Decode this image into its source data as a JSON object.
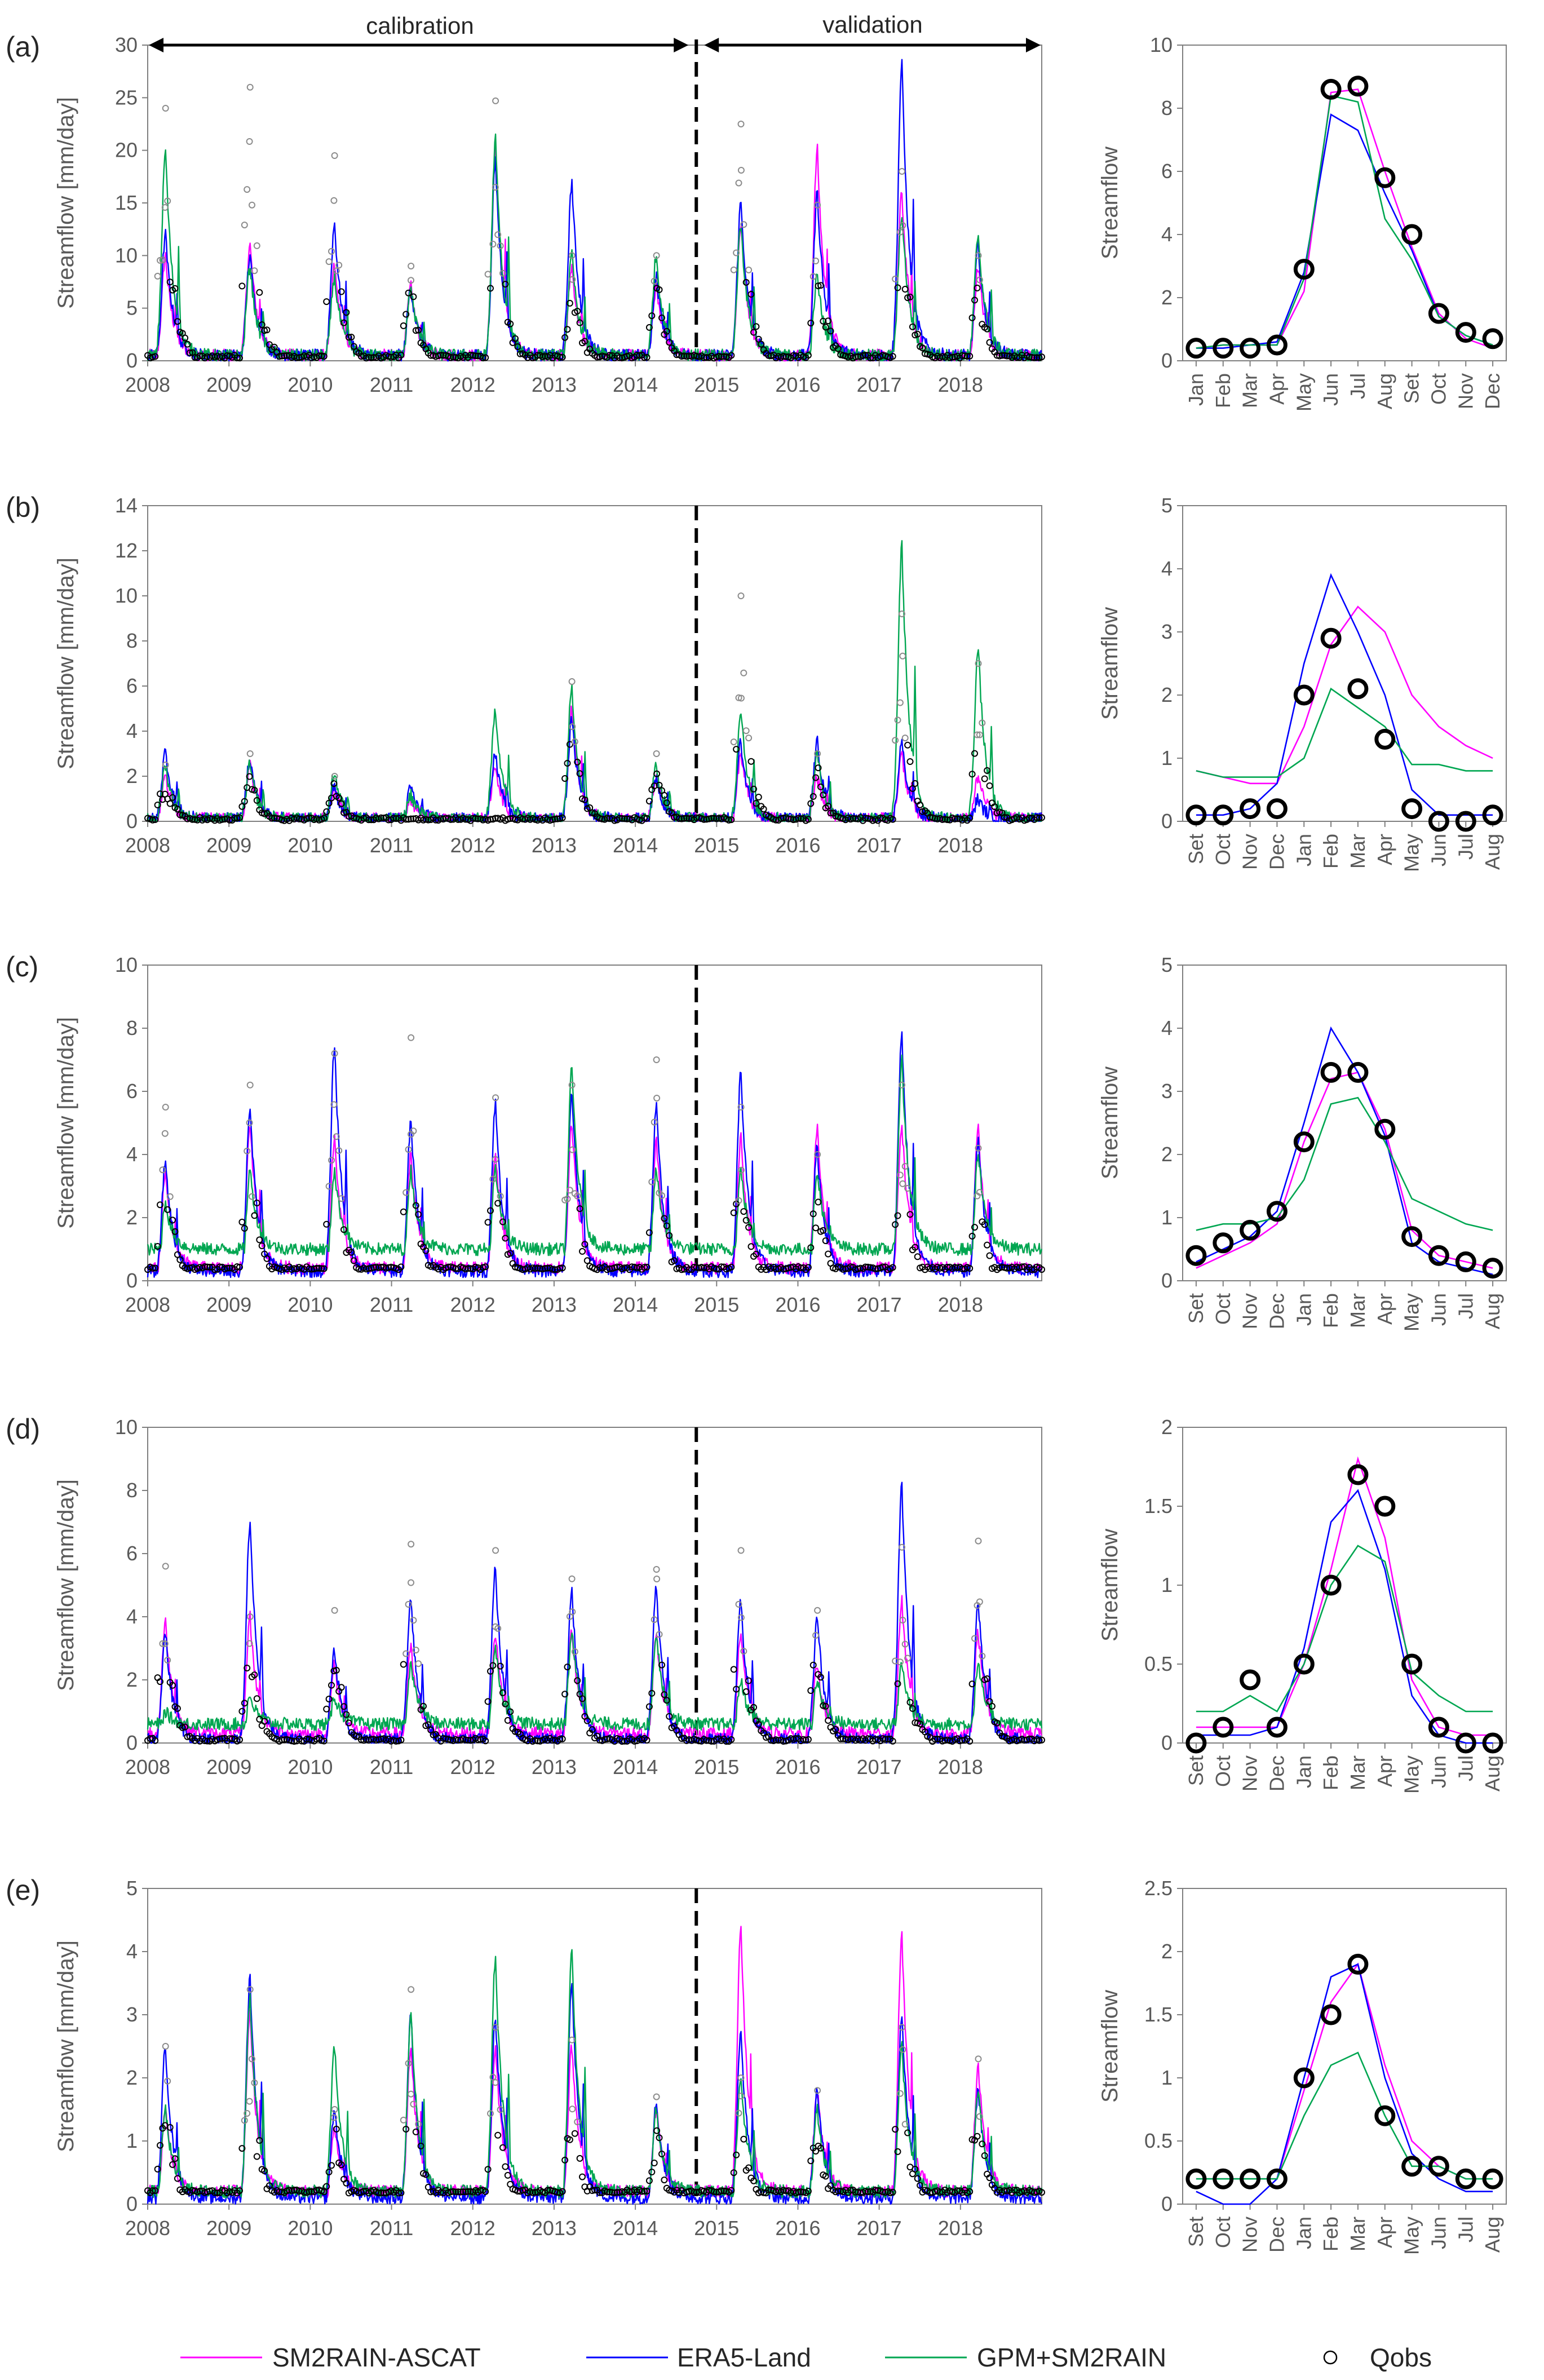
{
  "figure": {
    "calibration_label": "calibration",
    "validation_label": "validation"
  },
  "colors": {
    "SM2RAIN-ASCAT": "#ff00ff",
    "ERA5-Land": "#0000ff",
    "GPM+SM2RAIN": "#00a651",
    "Qobs": "#000000",
    "axis": "#7f7f7f"
  },
  "legend": [
    {
      "name": "SM2RAIN-ASCAT",
      "kind": "line"
    },
    {
      "name": "ERA5-Land",
      "kind": "line"
    },
    {
      "name": "GPM+SM2RAIN",
      "kind": "line"
    },
    {
      "name": "Qobs",
      "kind": "marker"
    }
  ],
  "chart_data": [
    {
      "panel": "(a)",
      "type": "line",
      "ylabel": "Streamflow [mm/day]",
      "x": [
        2008,
        2009,
        2010,
        2011,
        2012,
        2013,
        2014,
        2015,
        2016,
        2017,
        2018
      ],
      "xlim": [
        2008,
        2019
      ],
      "ylim": [
        0,
        30
      ],
      "yticks": [
        0,
        5,
        10,
        15,
        20,
        25,
        30
      ],
      "calibration_end": 2014.75,
      "series": [
        {
          "name": "SM2RAIN-ASCAT",
          "peaks": [
            10,
            11,
            9,
            7,
            20,
            9,
            7,
            13,
            20,
            16,
            9
          ],
          "base": 0.5
        },
        {
          "name": "ERA5-Land",
          "peaks": [
            12,
            10,
            13,
            7,
            19,
            17,
            8,
            15,
            16,
            28.3,
            11
          ],
          "base": 0.5
        },
        {
          "name": "GPM+SM2RAIN",
          "peaks": [
            20,
            9,
            8,
            7,
            21,
            10,
            10,
            13,
            8,
            14,
            12
          ],
          "base": 0.5
        }
      ],
      "qobs_peaks": [
        24,
        26,
        19.5,
        9,
        24.7,
        10,
        10,
        22.5,
        14.8,
        18,
        10
      ],
      "qobs_base": 0.4
    },
    {
      "panel": "(a)",
      "type": "line",
      "ylabel": "Streamflow",
      "categories": [
        "Jan",
        "Feb",
        "Mar",
        "Apr",
        "May",
        "Jun",
        "Jul",
        "Aug",
        "Set",
        "Oct",
        "Nov",
        "Dec"
      ],
      "ylim": [
        0,
        10
      ],
      "yticks": [
        0,
        2,
        4,
        6,
        8,
        10
      ],
      "series": [
        {
          "name": "SM2RAIN-ASCAT",
          "values": [
            0.4,
            0.5,
            0.5,
            0.5,
            2.2,
            8.5,
            8.6,
            6.0,
            3.6,
            1.5,
            0.7,
            0.4
          ]
        },
        {
          "name": "ERA5-Land",
          "values": [
            0.4,
            0.4,
            0.5,
            0.6,
            2.8,
            7.8,
            7.3,
            5.3,
            3.5,
            1.4,
            0.8,
            0.5
          ]
        },
        {
          "name": "GPM+SM2RAIN",
          "values": [
            0.4,
            0.5,
            0.5,
            0.5,
            2.6,
            8.4,
            8.2,
            4.5,
            3.2,
            1.4,
            0.8,
            0.5
          ]
        },
        {
          "name": "Qobs",
          "values": [
            0.4,
            0.4,
            0.4,
            0.5,
            2.9,
            8.6,
            8.7,
            5.8,
            4.0,
            1.5,
            0.9,
            0.7
          ]
        }
      ]
    },
    {
      "panel": "(b)",
      "type": "line",
      "ylabel": "Streamflow [mm/day]",
      "x": [
        2008,
        2009,
        2010,
        2011,
        2012,
        2013,
        2014,
        2015,
        2016,
        2017,
        2018
      ],
      "xlim": [
        2008,
        2019
      ],
      "ylim": [
        0,
        14
      ],
      "yticks": [
        0,
        2,
        4,
        6,
        8,
        10,
        12,
        14
      ],
      "calibration_end": 2014.75,
      "series": [
        {
          "name": "SM2RAIN-ASCAT",
          "peaks": [
            2,
            2.5,
            1.5,
            1,
            2.5,
            5,
            2,
            3,
            2,
            3,
            2
          ],
          "base": 0.1
        },
        {
          "name": "ERA5-Land",
          "peaks": [
            3.1,
            2.8,
            1.5,
            1.5,
            3,
            4.5,
            2,
            3.5,
            3.5,
            3.5,
            1
          ],
          "base": 0.1
        },
        {
          "name": "GPM+SM2RAIN",
          "peaks": [
            2.5,
            2.5,
            2.2,
            1.2,
            5,
            6,
            2.5,
            5,
            3,
            12.2,
            7.7
          ],
          "base": 0.1
        }
      ],
      "qobs_peaks": [
        2.5,
        3,
        2,
        0,
        0,
        6.2,
        3,
        10,
        3,
        9.2,
        7
      ],
      "qobs_base": 0.1
    },
    {
      "panel": "(b)",
      "type": "line",
      "ylabel": "Streamflow",
      "categories": [
        "Set",
        "Oct",
        "Nov",
        "Dec",
        "Jan",
        "Feb",
        "Mar",
        "Apr",
        "May",
        "Jun",
        "Jul",
        "Aug"
      ],
      "ylim": [
        0,
        5
      ],
      "yticks": [
        0,
        1,
        2,
        3,
        4,
        5
      ],
      "series": [
        {
          "name": "SM2RAIN-ASCAT",
          "values": [
            0.8,
            0.7,
            0.6,
            0.6,
            1.5,
            2.8,
            3.4,
            3.0,
            2.0,
            1.5,
            1.2,
            1.0
          ]
        },
        {
          "name": "ERA5-Land",
          "values": [
            0.1,
            0.1,
            0.2,
            0.6,
            2.5,
            3.9,
            3.0,
            2.0,
            0.5,
            0.1,
            0.1,
            0.1
          ]
        },
        {
          "name": "GPM+SM2RAIN",
          "values": [
            0.8,
            0.7,
            0.7,
            0.7,
            1.0,
            2.1,
            1.8,
            1.5,
            0.9,
            0.9,
            0.8,
            0.8
          ]
        },
        {
          "name": "Qobs",
          "values": [
            0.1,
            0.1,
            0.2,
            0.2,
            2.0,
            2.9,
            2.1,
            1.3,
            0.2,
            0.0,
            0.0,
            0.1
          ]
        }
      ]
    },
    {
      "panel": "(c)",
      "type": "line",
      "ylabel": "Streamflow [mm/day]",
      "x": [
        2008,
        2009,
        2010,
        2011,
        2012,
        2013,
        2014,
        2015,
        2016,
        2017,
        2018
      ],
      "xlim": [
        2008,
        2019
      ],
      "ylim": [
        0,
        10
      ],
      "yticks": [
        0,
        2,
        4,
        6,
        8,
        10
      ],
      "calibration_end": 2014.75,
      "series": [
        {
          "name": "SM2RAIN-ASCAT",
          "peaks": [
            3.5,
            5,
            4.5,
            4,
            4,
            5,
            4.5,
            4.5,
            4.8,
            5,
            4.8
          ],
          "base": 0.4
        },
        {
          "name": "ERA5-Land",
          "peaks": [
            3.8,
            5.5,
            7.5,
            5,
            5.6,
            6,
            5.5,
            6.6,
            4.2,
            7.9,
            4.5
          ],
          "base": 0.3
        },
        {
          "name": "GPM+SM2RAIN",
          "peaks": [
            2.5,
            3.5,
            3.5,
            3.5,
            3.5,
            6.7,
            3.5,
            3.5,
            3.5,
            7,
            4
          ],
          "base": 1.0
        }
      ],
      "qobs_peaks": [
        5.5,
        6.2,
        7.2,
        7.7,
        5.8,
        6.2,
        7,
        5.5,
        4,
        6.2,
        4.2
      ],
      "qobs_base": 0.4
    },
    {
      "panel": "(c)",
      "type": "line",
      "ylabel": "Streamflow",
      "categories": [
        "Set",
        "Oct",
        "Nov",
        "Dec",
        "Jan",
        "Feb",
        "Mar",
        "Apr",
        "May",
        "Jun",
        "Jul",
        "Aug"
      ],
      "ylim": [
        0,
        5
      ],
      "yticks": [
        0,
        1,
        2,
        3,
        4,
        5
      ],
      "series": [
        {
          "name": "SM2RAIN-ASCAT",
          "values": [
            0.2,
            0.4,
            0.6,
            0.9,
            2.2,
            3.2,
            3.3,
            2.4,
            0.8,
            0.4,
            0.3,
            0.2
          ]
        },
        {
          "name": "ERA5-Land",
          "values": [
            0.3,
            0.5,
            0.7,
            1.1,
            2.5,
            4.0,
            3.3,
            2.3,
            0.6,
            0.3,
            0.2,
            0.1
          ]
        },
        {
          "name": "GPM+SM2RAIN",
          "values": [
            0.8,
            0.9,
            0.9,
            1.0,
            1.6,
            2.8,
            2.9,
            2.2,
            1.3,
            1.1,
            0.9,
            0.8
          ]
        },
        {
          "name": "Qobs",
          "values": [
            0.4,
            0.6,
            0.8,
            1.1,
            2.2,
            3.3,
            3.3,
            2.4,
            0.7,
            0.4,
            0.3,
            0.2
          ]
        }
      ]
    },
    {
      "panel": "(d)",
      "type": "line",
      "ylabel": "Streamflow [mm/day]",
      "x": [
        2008,
        2009,
        2010,
        2011,
        2012,
        2013,
        2014,
        2015,
        2016,
        2017,
        2018
      ],
      "xlim": [
        2008,
        2019
      ],
      "ylim": [
        0,
        10
      ],
      "yticks": [
        0,
        2,
        4,
        6,
        8,
        10
      ],
      "calibration_end": 2014.75,
      "series": [
        {
          "name": "SM2RAIN-ASCAT",
          "peaks": [
            3.8,
            4,
            2.5,
            3,
            3.5,
            3.5,
            3.5,
            3.5,
            2.5,
            4.5,
            3.5
          ],
          "base": 0.3
        },
        {
          "name": "ERA5-Land",
          "peaks": [
            3.5,
            7,
            3,
            4.5,
            5.5,
            4.8,
            5,
            4.5,
            4,
            8.2,
            4.5
          ],
          "base": 0.1
        },
        {
          "name": "GPM+SM2RAIN",
          "peaks": [
            1,
            1.5,
            1.5,
            2.5,
            3,
            3.5,
            3.5,
            2,
            2,
            2.5,
            2.5
          ],
          "base": 0.6
        }
      ],
      "qobs_peaks": [
        5.6,
        4,
        4.2,
        6.3,
        6.1,
        5.2,
        5.5,
        6.1,
        4.2,
        6.2,
        6.4
      ],
      "qobs_base": 0.1
    },
    {
      "panel": "(d)",
      "type": "line",
      "ylabel": "Streamflow",
      "categories": [
        "Set",
        "Oct",
        "Nov",
        "Dec",
        "Jan",
        "Feb",
        "Mar",
        "Apr",
        "May",
        "Jun",
        "Jul",
        "Aug"
      ],
      "ylim": [
        0,
        2
      ],
      "yticks": [
        0,
        0.5,
        1,
        1.5,
        2
      ],
      "series": [
        {
          "name": "SM2RAIN-ASCAT",
          "values": [
            0.1,
            0.1,
            0.1,
            0.1,
            0.5,
            1.1,
            1.8,
            1.3,
            0.4,
            0.1,
            0.05,
            0.05
          ]
        },
        {
          "name": "ERA5-Land",
          "values": [
            0.05,
            0.05,
            0.05,
            0.1,
            0.6,
            1.4,
            1.6,
            1.1,
            0.3,
            0.05,
            0.0,
            0.0
          ]
        },
        {
          "name": "GPM+SM2RAIN",
          "values": [
            0.2,
            0.2,
            0.3,
            0.2,
            0.5,
            1.0,
            1.25,
            1.15,
            0.45,
            0.3,
            0.2,
            0.2
          ]
        },
        {
          "name": "Qobs",
          "values": [
            0.0,
            0.1,
            0.4,
            0.1,
            0.5,
            1.0,
            1.7,
            1.5,
            0.5,
            0.1,
            0.0,
            0.0
          ]
        }
      ]
    },
    {
      "panel": "(e)",
      "type": "line",
      "ylabel": "Streamflow [mm/day]",
      "x": [
        2008,
        2009,
        2010,
        2011,
        2012,
        2013,
        2014,
        2015,
        2016,
        2017,
        2018
      ],
      "xlim": [
        2008,
        2019
      ],
      "ylim": [
        0,
        5
      ],
      "yticks": [
        0,
        1,
        2,
        3,
        4,
        5
      ],
      "calibration_end": 2014.75,
      "series": [
        {
          "name": "SM2RAIN-ASCAT",
          "peaks": [
            1.5,
            3,
            1.2,
            2.5,
            2.5,
            2.5,
            1.5,
            4.4,
            1.8,
            4.3,
            2.2
          ],
          "base": 0.2
        },
        {
          "name": "ERA5-Land",
          "peaks": [
            2.5,
            3.6,
            1.5,
            3,
            3,
            3.5,
            1.6,
            2.7,
            1.8,
            3,
            1.8
          ],
          "base": 0.1
        },
        {
          "name": "GPM+SM2RAIN",
          "peaks": [
            1.5,
            3.3,
            2.5,
            3,
            3.9,
            4,
            1.5,
            2,
            1.5,
            2.5,
            1.8
          ],
          "base": 0.2
        }
      ],
      "qobs_peaks": [
        2.5,
        3.4,
        1.5,
        3.4,
        2.8,
        2.6,
        1.7,
        2,
        1.8,
        2.8,
        2.3
      ],
      "qobs_base": 0.2
    },
    {
      "panel": "(e)",
      "type": "line",
      "ylabel": "Streamflow",
      "categories": [
        "Set",
        "Oct",
        "Nov",
        "Dec",
        "Jan",
        "Feb",
        "Mar",
        "Apr",
        "May",
        "Jun",
        "Jul",
        "Aug"
      ],
      "ylim": [
        0,
        2.5
      ],
      "yticks": [
        0,
        0.5,
        1,
        1.5,
        2,
        2.5
      ],
      "series": [
        {
          "name": "SM2RAIN-ASCAT",
          "values": [
            0.2,
            0.2,
            0.2,
            0.2,
            0.9,
            1.6,
            1.9,
            1.1,
            0.5,
            0.3,
            0.2,
            0.2
          ]
        },
        {
          "name": "ERA5-Land",
          "values": [
            0.1,
            0.0,
            0.0,
            0.2,
            1.0,
            1.8,
            1.9,
            1.0,
            0.4,
            0.2,
            0.1,
            0.1
          ]
        },
        {
          "name": "GPM+SM2RAIN",
          "values": [
            0.2,
            0.2,
            0.2,
            0.2,
            0.7,
            1.1,
            1.2,
            0.7,
            0.3,
            0.3,
            0.2,
            0.2
          ]
        },
        {
          "name": "Qobs",
          "values": [
            0.2,
            0.2,
            0.2,
            0.2,
            1.0,
            1.5,
            1.9,
            0.7,
            0.3,
            0.3,
            0.2,
            0.2
          ]
        }
      ]
    }
  ]
}
